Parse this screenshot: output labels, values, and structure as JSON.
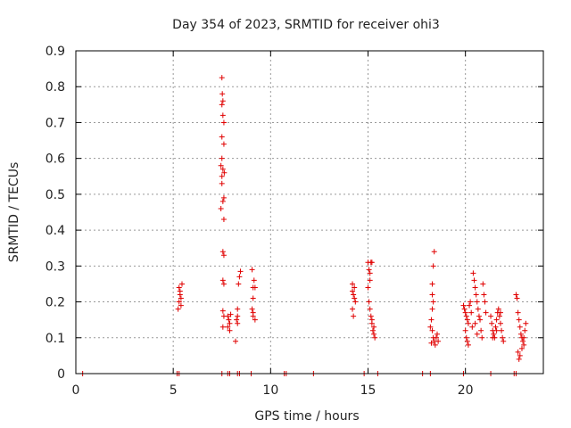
{
  "chart_data": {
    "type": "scatter",
    "title": "Day 354 of 2023, SRMTID for receiver ohi3",
    "xlabel": "GPS time / hours",
    "ylabel": "SRMTID / TECUs",
    "xlim": [
      0,
      24
    ],
    "ylim": [
      0,
      0.9
    ],
    "xticks": [
      0,
      5,
      10,
      15,
      20
    ],
    "xtick_labels": [
      "0",
      "5",
      "10",
      "15",
      "20"
    ],
    "yticks": [
      0,
      0.1,
      0.2,
      0.3,
      0.4,
      0.5,
      0.6,
      0.7,
      0.8,
      0.9
    ],
    "ytick_labels": [
      "0",
      "0.1",
      "0.2",
      "0.3",
      "0.4",
      "0.5",
      "0.6",
      "0.7",
      "0.8",
      "0.9"
    ],
    "grid": true,
    "marker": "plus",
    "color": "#e00000",
    "series": [
      {
        "name": "SRMTID",
        "points": [
          [
            0.35,
            0
          ],
          [
            5.2,
            0
          ],
          [
            5.3,
            0
          ],
          [
            7.5,
            0
          ],
          [
            7.8,
            0
          ],
          [
            7.9,
            0
          ],
          [
            8.3,
            0
          ],
          [
            8.4,
            0
          ],
          [
            9.0,
            0
          ],
          [
            10.7,
            0
          ],
          [
            10.8,
            0
          ],
          [
            12.2,
            0
          ],
          [
            14.8,
            0
          ],
          [
            15.5,
            0
          ],
          [
            17.8,
            0
          ],
          [
            18.2,
            0
          ],
          [
            19.9,
            0
          ],
          [
            21.3,
            0
          ],
          [
            22.5,
            0
          ],
          [
            22.6,
            0
          ],
          [
            5.25,
            0.18
          ],
          [
            5.3,
            0.2
          ],
          [
            5.35,
            0.22
          ],
          [
            5.3,
            0.24
          ],
          [
            5.45,
            0.25
          ],
          [
            5.4,
            0.19
          ],
          [
            5.35,
            0.23
          ],
          [
            5.4,
            0.21
          ],
          [
            7.5,
            0.825
          ],
          [
            7.52,
            0.78
          ],
          [
            7.55,
            0.76
          ],
          [
            7.5,
            0.75
          ],
          [
            7.55,
            0.72
          ],
          [
            7.6,
            0.7
          ],
          [
            7.5,
            0.66
          ],
          [
            7.6,
            0.64
          ],
          [
            7.5,
            0.6
          ],
          [
            7.45,
            0.58
          ],
          [
            7.55,
            0.57
          ],
          [
            7.62,
            0.56
          ],
          [
            7.5,
            0.55
          ],
          [
            7.5,
            0.53
          ],
          [
            7.6,
            0.49
          ],
          [
            7.55,
            0.48
          ],
          [
            7.45,
            0.46
          ],
          [
            7.6,
            0.43
          ],
          [
            7.55,
            0.34
          ],
          [
            7.6,
            0.33
          ],
          [
            7.55,
            0.26
          ],
          [
            7.6,
            0.25
          ],
          [
            7.55,
            0.175
          ],
          [
            7.6,
            0.16
          ],
          [
            7.55,
            0.13
          ],
          [
            7.8,
            0.16
          ],
          [
            7.85,
            0.15
          ],
          [
            7.9,
            0.14
          ],
          [
            7.8,
            0.13
          ],
          [
            7.9,
            0.12
          ],
          [
            7.95,
            0.165
          ],
          [
            8.2,
            0.09
          ],
          [
            8.25,
            0.15
          ],
          [
            8.3,
            0.16
          ],
          [
            8.3,
            0.14
          ],
          [
            8.3,
            0.18
          ],
          [
            8.35,
            0.25
          ],
          [
            8.4,
            0.27
          ],
          [
            8.45,
            0.285
          ],
          [
            9.05,
            0.29
          ],
          [
            9.1,
            0.24
          ],
          [
            9.2,
            0.24
          ],
          [
            9.15,
            0.26
          ],
          [
            9.1,
            0.21
          ],
          [
            9.05,
            0.18
          ],
          [
            9.1,
            0.16
          ],
          [
            9.2,
            0.15
          ],
          [
            9.1,
            0.17
          ],
          [
            14.2,
            0.25
          ],
          [
            14.2,
            0.23
          ],
          [
            14.25,
            0.22
          ],
          [
            14.3,
            0.21
          ],
          [
            14.2,
            0.18
          ],
          [
            14.25,
            0.16
          ],
          [
            14.3,
            0.24
          ],
          [
            14.35,
            0.2
          ],
          [
            15.0,
            0.31
          ],
          [
            15.05,
            0.29
          ],
          [
            15.1,
            0.28
          ],
          [
            15.15,
            0.31
          ],
          [
            15.2,
            0.31
          ],
          [
            15.1,
            0.26
          ],
          [
            15.0,
            0.24
          ],
          [
            15.05,
            0.2
          ],
          [
            15.1,
            0.18
          ],
          [
            15.15,
            0.16
          ],
          [
            15.2,
            0.14
          ],
          [
            15.25,
            0.12
          ],
          [
            15.3,
            0.11
          ],
          [
            15.35,
            0.1
          ],
          [
            15.2,
            0.15
          ],
          [
            15.3,
            0.13
          ],
          [
            18.4,
            0.34
          ],
          [
            18.35,
            0.3
          ],
          [
            18.3,
            0.25
          ],
          [
            18.3,
            0.22
          ],
          [
            18.35,
            0.2
          ],
          [
            18.3,
            0.18
          ],
          [
            18.25,
            0.15
          ],
          [
            18.2,
            0.13
          ],
          [
            18.3,
            0.12
          ],
          [
            18.35,
            0.1
          ],
          [
            18.4,
            0.09
          ],
          [
            18.45,
            0.08
          ],
          [
            18.5,
            0.1
          ],
          [
            18.55,
            0.11
          ],
          [
            18.6,
            0.09
          ],
          [
            18.25,
            0.085
          ],
          [
            19.9,
            0.19
          ],
          [
            19.95,
            0.18
          ],
          [
            20.0,
            0.17
          ],
          [
            20.05,
            0.16
          ],
          [
            20.1,
            0.15
          ],
          [
            20.15,
            0.14
          ],
          [
            20.0,
            0.12
          ],
          [
            20.05,
            0.1
          ],
          [
            20.1,
            0.09
          ],
          [
            20.15,
            0.08
          ],
          [
            20.2,
            0.19
          ],
          [
            20.25,
            0.2
          ],
          [
            20.3,
            0.17
          ],
          [
            20.35,
            0.13
          ],
          [
            20.4,
            0.28
          ],
          [
            20.45,
            0.26
          ],
          [
            20.5,
            0.24
          ],
          [
            20.55,
            0.22
          ],
          [
            20.6,
            0.2
          ],
          [
            20.65,
            0.18
          ],
          [
            20.7,
            0.16
          ],
          [
            20.75,
            0.15
          ],
          [
            20.8,
            0.12
          ],
          [
            20.85,
            0.1
          ],
          [
            20.9,
            0.25
          ],
          [
            20.95,
            0.22
          ],
          [
            21.0,
            0.2
          ],
          [
            21.05,
            0.17
          ],
          [
            20.5,
            0.14
          ],
          [
            20.6,
            0.11
          ],
          [
            21.3,
            0.16
          ],
          [
            21.35,
            0.14
          ],
          [
            21.4,
            0.12
          ],
          [
            21.45,
            0.11
          ],
          [
            21.5,
            0.1
          ],
          [
            21.55,
            0.13
          ],
          [
            21.6,
            0.15
          ],
          [
            21.65,
            0.17
          ],
          [
            21.7,
            0.18
          ],
          [
            21.75,
            0.16
          ],
          [
            21.8,
            0.14
          ],
          [
            21.85,
            0.12
          ],
          [
            21.9,
            0.1
          ],
          [
            21.95,
            0.09
          ],
          [
            21.4,
            0.1
          ],
          [
            21.6,
            0.12
          ],
          [
            21.8,
            0.17
          ],
          [
            22.6,
            0.22
          ],
          [
            22.65,
            0.21
          ],
          [
            22.7,
            0.17
          ],
          [
            22.75,
            0.15
          ],
          [
            22.8,
            0.13
          ],
          [
            22.85,
            0.11
          ],
          [
            22.9,
            0.1
          ],
          [
            22.95,
            0.09
          ],
          [
            23.0,
            0.08
          ],
          [
            23.05,
            0.12
          ],
          [
            23.1,
            0.14
          ],
          [
            22.7,
            0.06
          ],
          [
            22.75,
            0.04
          ],
          [
            22.8,
            0.05
          ],
          [
            22.9,
            0.07
          ],
          [
            23.0,
            0.1
          ]
        ]
      }
    ]
  }
}
